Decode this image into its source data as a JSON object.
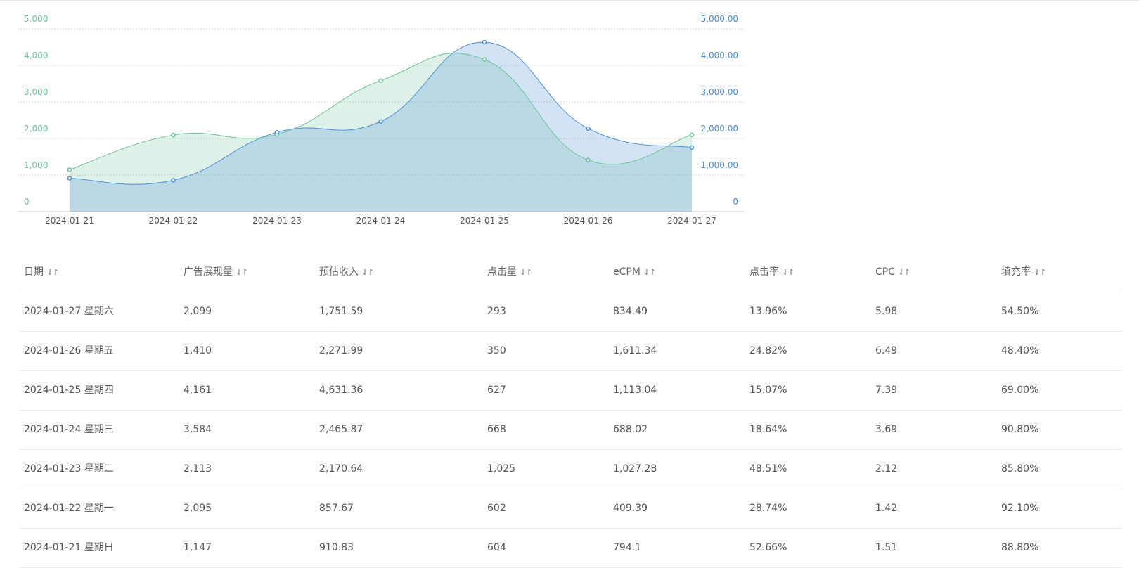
{
  "chart_data": {
    "type": "area",
    "categories": [
      "2024-01-21",
      "2024-01-22",
      "2024-01-23",
      "2024-01-24",
      "2024-01-25",
      "2024-01-26",
      "2024-01-27"
    ],
    "series": [
      {
        "values": [
          1147,
          2095,
          2113,
          3584,
          4161,
          1410,
          2099
        ],
        "axis": "left",
        "color": "#6cc39a"
      },
      {
        "values": [
          910.83,
          857.67,
          2170.64,
          2465.87,
          4631.36,
          2271.99,
          1751.59
        ],
        "axis": "right",
        "color": "#4a90d9"
      }
    ],
    "y_left": {
      "ticks": [
        "0",
        "1,000",
        "2,000",
        "3,000",
        "4,000",
        "5,000"
      ],
      "range": [
        0,
        5000
      ],
      "color": "#6cc39a"
    },
    "y_right": {
      "ticks": [
        "0",
        "1,000.00",
        "2,000.00",
        "3,000.00",
        "4,000.00",
        "5,000.00"
      ],
      "range": [
        0,
        5000
      ],
      "color": "#4a90d9"
    },
    "grid": true
  },
  "table": {
    "headers": [
      "日期",
      "广告展现量",
      "预估收入",
      "点击量",
      "eCPM",
      "点击率",
      "CPC",
      "填充率"
    ],
    "sort_icon": "⇃↾",
    "rows": [
      [
        "2024-01-27 星期六",
        "2,099",
        "1,751.59",
        "293",
        "834.49",
        "13.96%",
        "5.98",
        "54.50%"
      ],
      [
        "2024-01-26 星期五",
        "1,410",
        "2,271.99",
        "350",
        "1,611.34",
        "24.82%",
        "6.49",
        "48.40%"
      ],
      [
        "2024-01-25 星期四",
        "4,161",
        "4,631.36",
        "627",
        "1,113.04",
        "15.07%",
        "7.39",
        "69.00%"
      ],
      [
        "2024-01-24 星期三",
        "3,584",
        "2,465.87",
        "668",
        "688.02",
        "18.64%",
        "3.69",
        "90.80%"
      ],
      [
        "2024-01-23 星期二",
        "2,113",
        "2,170.64",
        "1,025",
        "1,027.28",
        "48.51%",
        "2.12",
        "85.80%"
      ],
      [
        "2024-01-22 星期一",
        "2,095",
        "857.67",
        "602",
        "409.39",
        "28.74%",
        "1.42",
        "92.10%"
      ],
      [
        "2024-01-21 星期日",
        "1,147",
        "910.83",
        "604",
        "794.1",
        "52.66%",
        "1.51",
        "88.80%"
      ]
    ]
  }
}
